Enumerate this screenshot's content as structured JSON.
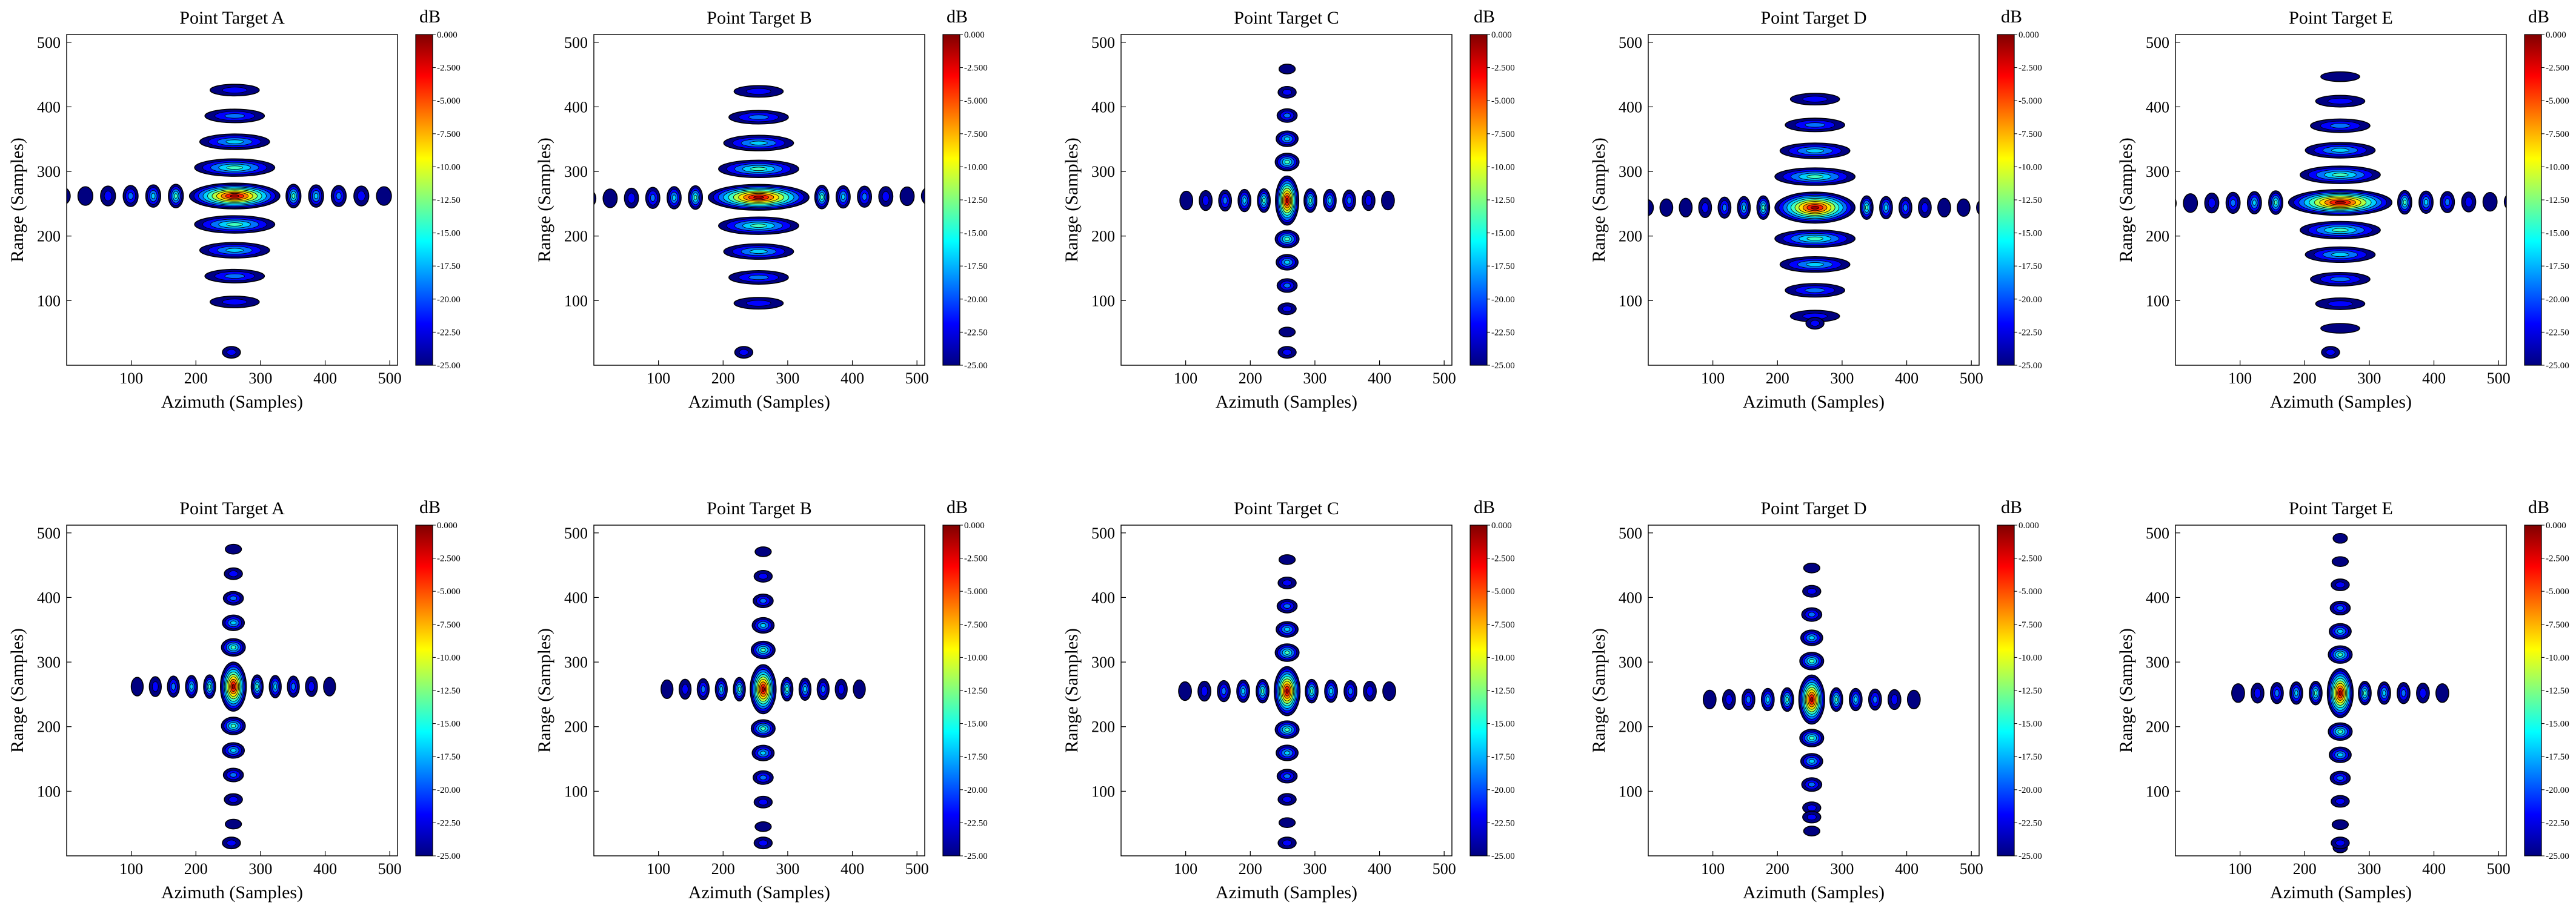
{
  "figure": {
    "x_axis_label": "Azimuth (Samples)",
    "y_axis_label": "Range (Samples)",
    "colorbar_unit": "dB",
    "colorbar_ticks": [
      "0.000",
      "-2.500",
      "-5.000",
      "-7.500",
      "-10.00",
      "-12.50",
      "-15.00",
      "-17.50",
      "-20.00",
      "-22.50",
      "-25.00"
    ]
  },
  "colors": {
    "jet": [
      "#000080",
      "#0000ff",
      "#0080ff",
      "#00ffff",
      "#80ff80",
      "#ffff00",
      "#ff8000",
      "#ff0000",
      "#800000"
    ],
    "contour_line": "#000000",
    "background": "#ffffff"
  },
  "chart_data": [
    {
      "type": "heatmap",
      "title": "Point Target A",
      "row": 1,
      "xlabel": "Azimuth (Samples)",
      "ylabel": "Range (Samples)",
      "xlim": [
        0,
        512
      ],
      "ylim": [
        0,
        512
      ],
      "xticks": [
        100,
        200,
        300,
        400,
        500
      ],
      "yticks": [
        100,
        200,
        300,
        400,
        500
      ],
      "colorbar_range_db": [
        -25,
        0
      ],
      "peak": [
        260,
        262
      ],
      "azimuth_lobes": 7,
      "range_lobes": 4,
      "azimuth_spacing": 35,
      "range_spacing": 40,
      "mainlobe_half_width": [
        70,
        20
      ],
      "skew": 0,
      "far_blob": [
        255,
        20
      ]
    },
    {
      "type": "heatmap",
      "title": "Point Target B",
      "row": 1,
      "xlabel": "Azimuth (Samples)",
      "ylabel": "Range (Samples)",
      "xlim": [
        0,
        512
      ],
      "ylim": [
        0,
        512
      ],
      "xticks": [
        100,
        200,
        300,
        400,
        500
      ],
      "yticks": [
        100,
        200,
        300,
        400,
        500
      ],
      "colorbar_range_db": [
        -25,
        0
      ],
      "peak": [
        255,
        260
      ],
      "azimuth_lobes": 8,
      "range_lobes": 4,
      "azimuth_spacing": 33,
      "range_spacing": 40,
      "mainlobe_half_width": [
        78,
        20
      ],
      "skew": 0.08,
      "far_blob": [
        232,
        20
      ]
    },
    {
      "type": "heatmap",
      "title": "Point Target C",
      "row": 1,
      "xlabel": "Azimuth (Samples)",
      "ylabel": "Range (Samples)",
      "xlim": [
        0,
        512
      ],
      "ylim": [
        0,
        512
      ],
      "xticks": [
        100,
        200,
        300,
        400,
        500
      ],
      "yticks": [
        100,
        200,
        300,
        400,
        500
      ],
      "colorbar_range_db": [
        -25,
        0
      ],
      "peak": [
        257,
        255
      ],
      "azimuth_lobes": 5,
      "range_lobes": 5,
      "azimuth_spacing": 30,
      "range_spacing": 36,
      "mainlobe_half_width": [
        18,
        38
      ],
      "skew": 0,
      "far_blob": [
        257,
        20
      ]
    },
    {
      "type": "heatmap",
      "title": "Point Target D",
      "row": 1,
      "xlabel": "Azimuth (Samples)",
      "ylabel": "Range (Samples)",
      "xlim": [
        0,
        512
      ],
      "ylim": [
        0,
        512
      ],
      "xticks": [
        100,
        200,
        300,
        400,
        500
      ],
      "yticks": [
        100,
        200,
        300,
        400,
        500
      ],
      "colorbar_range_db": [
        -25,
        0
      ],
      "peak": [
        258,
        244
      ],
      "azimuth_lobes": 8,
      "range_lobes": 4,
      "azimuth_spacing": 30,
      "range_spacing": 40,
      "mainlobe_half_width": [
        62,
        24
      ],
      "skew": 0,
      "far_blob": [
        258,
        65
      ]
    },
    {
      "type": "heatmap",
      "title": "Point Target E",
      "row": 1,
      "xlabel": "Azimuth (Samples)",
      "ylabel": "Range (Samples)",
      "xlim": [
        0,
        512
      ],
      "ylim": [
        0,
        512
      ],
      "xticks": [
        100,
        200,
        300,
        400,
        500
      ],
      "yticks": [
        100,
        200,
        300,
        400,
        500
      ],
      "colorbar_range_db": [
        -25,
        0
      ],
      "peak": [
        255,
        252
      ],
      "azimuth_lobes": 7,
      "range_lobes": 5,
      "azimuth_spacing": 33,
      "range_spacing": 38,
      "mainlobe_half_width": [
        80,
        20
      ],
      "skew": 0.05,
      "far_blob": [
        240,
        20
      ]
    },
    {
      "type": "heatmap",
      "title": "Point Target A",
      "row": 2,
      "xlabel": "Azimuth (Samples)",
      "ylabel": "Range (Samples)",
      "xlim": [
        0,
        512
      ],
      "ylim": [
        0,
        512
      ],
      "xticks": [
        100,
        200,
        300,
        400,
        500
      ],
      "yticks": [
        100,
        200,
        300,
        400,
        500
      ],
      "colorbar_range_db": [
        -25,
        0
      ],
      "peak": [
        258,
        262
      ],
      "azimuth_lobes": 5,
      "range_lobes": 5,
      "azimuth_spacing": 28,
      "range_spacing": 38,
      "mainlobe_half_width": [
        20,
        38
      ],
      "skew": 0,
      "far_blob": [
        255,
        20
      ]
    },
    {
      "type": "heatmap",
      "title": "Point Target B",
      "row": 2,
      "xlabel": "Azimuth (Samples)",
      "ylabel": "Range (Samples)",
      "xlim": [
        0,
        512
      ],
      "ylim": [
        0,
        512
      ],
      "xticks": [
        100,
        200,
        300,
        400,
        500
      ],
      "yticks": [
        100,
        200,
        300,
        400,
        500
      ],
      "colorbar_range_db": [
        -25,
        0
      ],
      "peak": [
        262,
        258
      ],
      "azimuth_lobes": 5,
      "range_lobes": 5,
      "azimuth_spacing": 28,
      "range_spacing": 38,
      "mainlobe_half_width": [
        20,
        38
      ],
      "skew": 0,
      "far_blob": [
        262,
        20
      ]
    },
    {
      "type": "heatmap",
      "title": "Point Target C",
      "row": 2,
      "xlabel": "Azimuth (Samples)",
      "ylabel": "Range (Samples)",
      "xlim": [
        0,
        512
      ],
      "ylim": [
        0,
        512
      ],
      "xticks": [
        100,
        200,
        300,
        400,
        500
      ],
      "yticks": [
        100,
        200,
        300,
        400,
        500
      ],
      "colorbar_range_db": [
        -25,
        0
      ],
      "peak": [
        257,
        255
      ],
      "azimuth_lobes": 5,
      "range_lobes": 5,
      "azimuth_spacing": 30,
      "range_spacing": 36,
      "mainlobe_half_width": [
        20,
        38
      ],
      "skew": 0,
      "far_blob": [
        257,
        20
      ]
    },
    {
      "type": "heatmap",
      "title": "Point Target D",
      "row": 2,
      "xlabel": "Azimuth (Samples)",
      "ylabel": "Range (Samples)",
      "xlim": [
        0,
        512
      ],
      "ylim": [
        0,
        512
      ],
      "xticks": [
        100,
        200,
        300,
        400,
        500
      ],
      "yticks": [
        100,
        200,
        300,
        400,
        500
      ],
      "colorbar_range_db": [
        -25,
        0
      ],
      "peak": [
        253,
        242
      ],
      "azimuth_lobes": 5,
      "range_lobes": 5,
      "azimuth_spacing": 30,
      "range_spacing": 36,
      "mainlobe_half_width": [
        20,
        38
      ],
      "skew": 0,
      "far_blob": [
        253,
        60
      ]
    },
    {
      "type": "heatmap",
      "title": "Point Target E",
      "row": 2,
      "xlabel": "Azimuth (Samples)",
      "ylabel": "Range (Samples)",
      "xlim": [
        0,
        512
      ],
      "ylim": [
        0,
        512
      ],
      "xticks": [
        100,
        200,
        300,
        400,
        500
      ],
      "yticks": [
        100,
        200,
        300,
        400,
        500
      ],
      "colorbar_range_db": [
        -25,
        0
      ],
      "peak": [
        255,
        252
      ],
      "azimuth_lobes": 5,
      "range_lobes": 6,
      "azimuth_spacing": 30,
      "range_spacing": 36,
      "mainlobe_half_width": [
        20,
        38
      ],
      "skew": 0,
      "far_blob": [
        255,
        20
      ]
    }
  ]
}
